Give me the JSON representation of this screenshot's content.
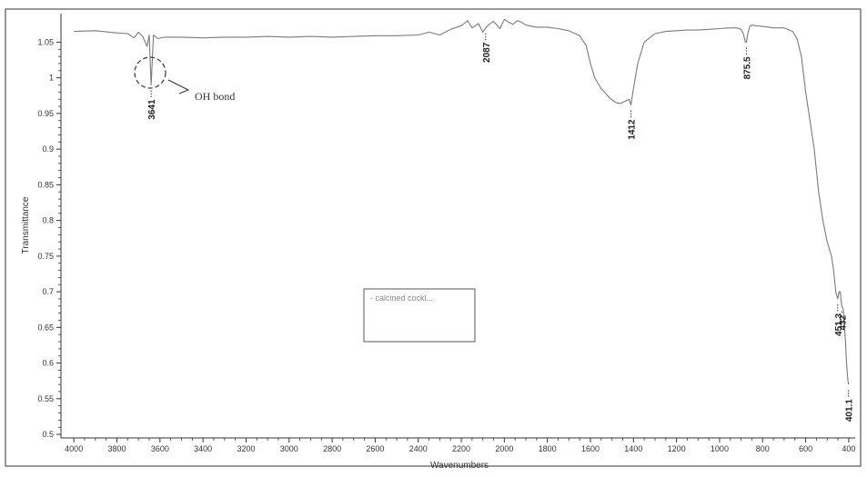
{
  "chart_data": {
    "type": "line",
    "xlabel": "Wavenumbers",
    "ylabel": "Transmittance",
    "xlim": [
      4060,
      370
    ],
    "ylim": [
      0.495,
      1.09
    ],
    "x_ticks": [
      4000,
      3800,
      3600,
      3400,
      3200,
      3000,
      2800,
      2600,
      2400,
      2200,
      2000,
      1800,
      1600,
      1400,
      1200,
      1000,
      800,
      600,
      400
    ],
    "y_ticks": [
      0.5,
      0.55,
      0.6,
      0.65,
      0.7,
      0.75,
      0.8,
      0.85,
      0.9,
      0.95,
      1,
      1.05
    ],
    "legend": {
      "text": "- calcined cockl...",
      "placement": "center"
    },
    "series": [
      {
        "name": "calcined cockl...",
        "color": "#7a7a7a",
        "x": [
          4000,
          3900,
          3800,
          3750,
          3720,
          3700,
          3680,
          3660,
          3650,
          3641,
          3630,
          3610,
          3580,
          3500,
          3400,
          3300,
          3200,
          3100,
          3000,
          2900,
          2800,
          2700,
          2600,
          2500,
          2400,
          2350,
          2300,
          2250,
          2200,
          2170,
          2150,
          2120,
          2100,
          2087,
          2070,
          2050,
          2020,
          2000,
          1980,
          1960,
          1940,
          1920,
          1900,
          1850,
          1800,
          1750,
          1700,
          1650,
          1620,
          1600,
          1580,
          1550,
          1520,
          1500,
          1480,
          1460,
          1440,
          1420,
          1412,
          1400,
          1380,
          1350,
          1300,
          1250,
          1200,
          1150,
          1100,
          1050,
          1000,
          950,
          920,
          900,
          890,
          880,
          875.5,
          870,
          860,
          850,
          830,
          800,
          750,
          700,
          660,
          640,
          620,
          600,
          580,
          560,
          550,
          540,
          520,
          500,
          480,
          470,
          460,
          451.3,
          445,
          440,
          432,
          425,
          420,
          415,
          410,
          405,
          401.1
        ],
        "y": [
          1.065,
          1.066,
          1.063,
          1.062,
          1.056,
          1.064,
          1.058,
          1.044,
          1.06,
          0.99,
          1.06,
          1.055,
          1.057,
          1.057,
          1.056,
          1.057,
          1.057,
          1.058,
          1.057,
          1.058,
          1.057,
          1.058,
          1.059,
          1.059,
          1.06,
          1.064,
          1.06,
          1.068,
          1.073,
          1.08,
          1.07,
          1.076,
          1.064,
          1.07,
          1.075,
          1.079,
          1.069,
          1.082,
          1.078,
          1.075,
          1.08,
          1.078,
          1.074,
          1.071,
          1.071,
          1.069,
          1.066,
          1.059,
          1.045,
          1.02,
          1.0,
          0.985,
          0.975,
          0.969,
          0.965,
          0.964,
          0.967,
          0.97,
          0.962,
          0.985,
          1.02,
          1.05,
          1.062,
          1.065,
          1.066,
          1.067,
          1.067,
          1.068,
          1.069,
          1.07,
          1.07,
          1.068,
          1.062,
          1.05,
          1.05,
          1.06,
          1.072,
          1.074,
          1.073,
          1.072,
          1.07,
          1.07,
          1.065,
          1.055,
          1.03,
          0.98,
          0.94,
          0.9,
          0.87,
          0.84,
          0.8,
          0.77,
          0.75,
          0.73,
          0.7,
          0.69,
          0.7,
          0.7,
          0.68,
          0.675,
          0.65,
          0.63,
          0.6,
          0.58,
          0.57
        ]
      }
    ],
    "peak_labels": [
      {
        "x": 3641,
        "label": "3641"
      },
      {
        "x": 2087,
        "label": "2087"
      },
      {
        "x": 1412,
        "label": "1412"
      },
      {
        "x": 875.5,
        "label": "875.5"
      },
      {
        "x": 451.3,
        "label": "451.3"
      },
      {
        "x": 432,
        "label": "432"
      },
      {
        "x": 401.1,
        "label": "401.1"
      }
    ],
    "annotation": {
      "text": "OH bond",
      "x": 3641
    }
  }
}
